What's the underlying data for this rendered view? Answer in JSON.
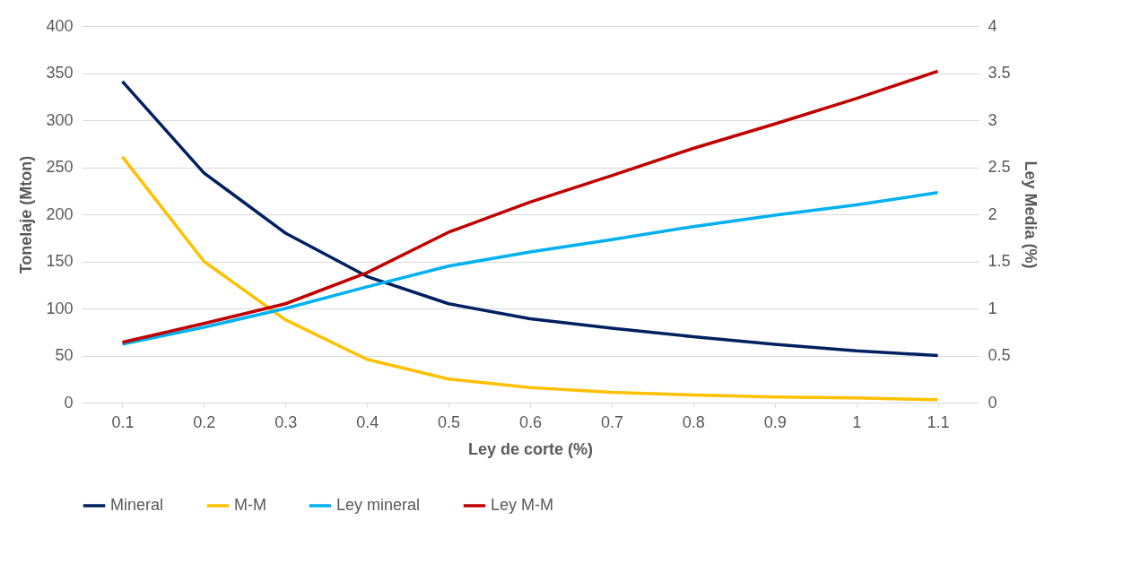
{
  "chart_data": {
    "type": "line",
    "xlabel": "Ley de corte (%)",
    "ylabel": "Tonelaje (Mton)",
    "y2label": "Ley Media (%)",
    "categories": [
      "0.1",
      "0.2",
      "0.3",
      "0.4",
      "0.5",
      "0.6",
      "0.7",
      "0.8",
      "0.9",
      "1",
      "1.1"
    ],
    "series": [
      {
        "name": "Mineral",
        "color": "#002060",
        "values": [
          341,
          244,
          180,
          134,
          105,
          89,
          79,
          70,
          62,
          55,
          50
        ]
      },
      {
        "name": "M-M",
        "color": "#ffc000",
        "values": [
          261,
          150,
          88,
          46,
          25,
          16,
          11,
          8,
          6,
          5,
          3
        ]
      },
      {
        "name": "Ley mineral",
        "color": "#00b0f0",
        "axis": "y2",
        "values": [
          0.62,
          0.8,
          1.0,
          1.23,
          1.45,
          1.6,
          1.73,
          1.87,
          1.99,
          2.1,
          2.23
        ]
      },
      {
        "name": "Ley M-M",
        "color": "#c00000",
        "axis": "y2",
        "values": [
          0.64,
          0.84,
          1.05,
          1.38,
          1.81,
          2.13,
          2.41,
          2.7,
          2.96,
          3.23,
          3.52
        ]
      }
    ],
    "ylim": [
      0,
      400
    ],
    "yticks": [
      0,
      50,
      100,
      150,
      200,
      250,
      300,
      350,
      400
    ],
    "y2lim": [
      0,
      4
    ],
    "y2ticks": [
      0,
      0.5,
      1,
      1.5,
      2,
      2.5,
      3,
      3.5,
      4
    ],
    "grid": "y",
    "legend": "bottom",
    "marker": "none",
    "line_style": "solid"
  }
}
